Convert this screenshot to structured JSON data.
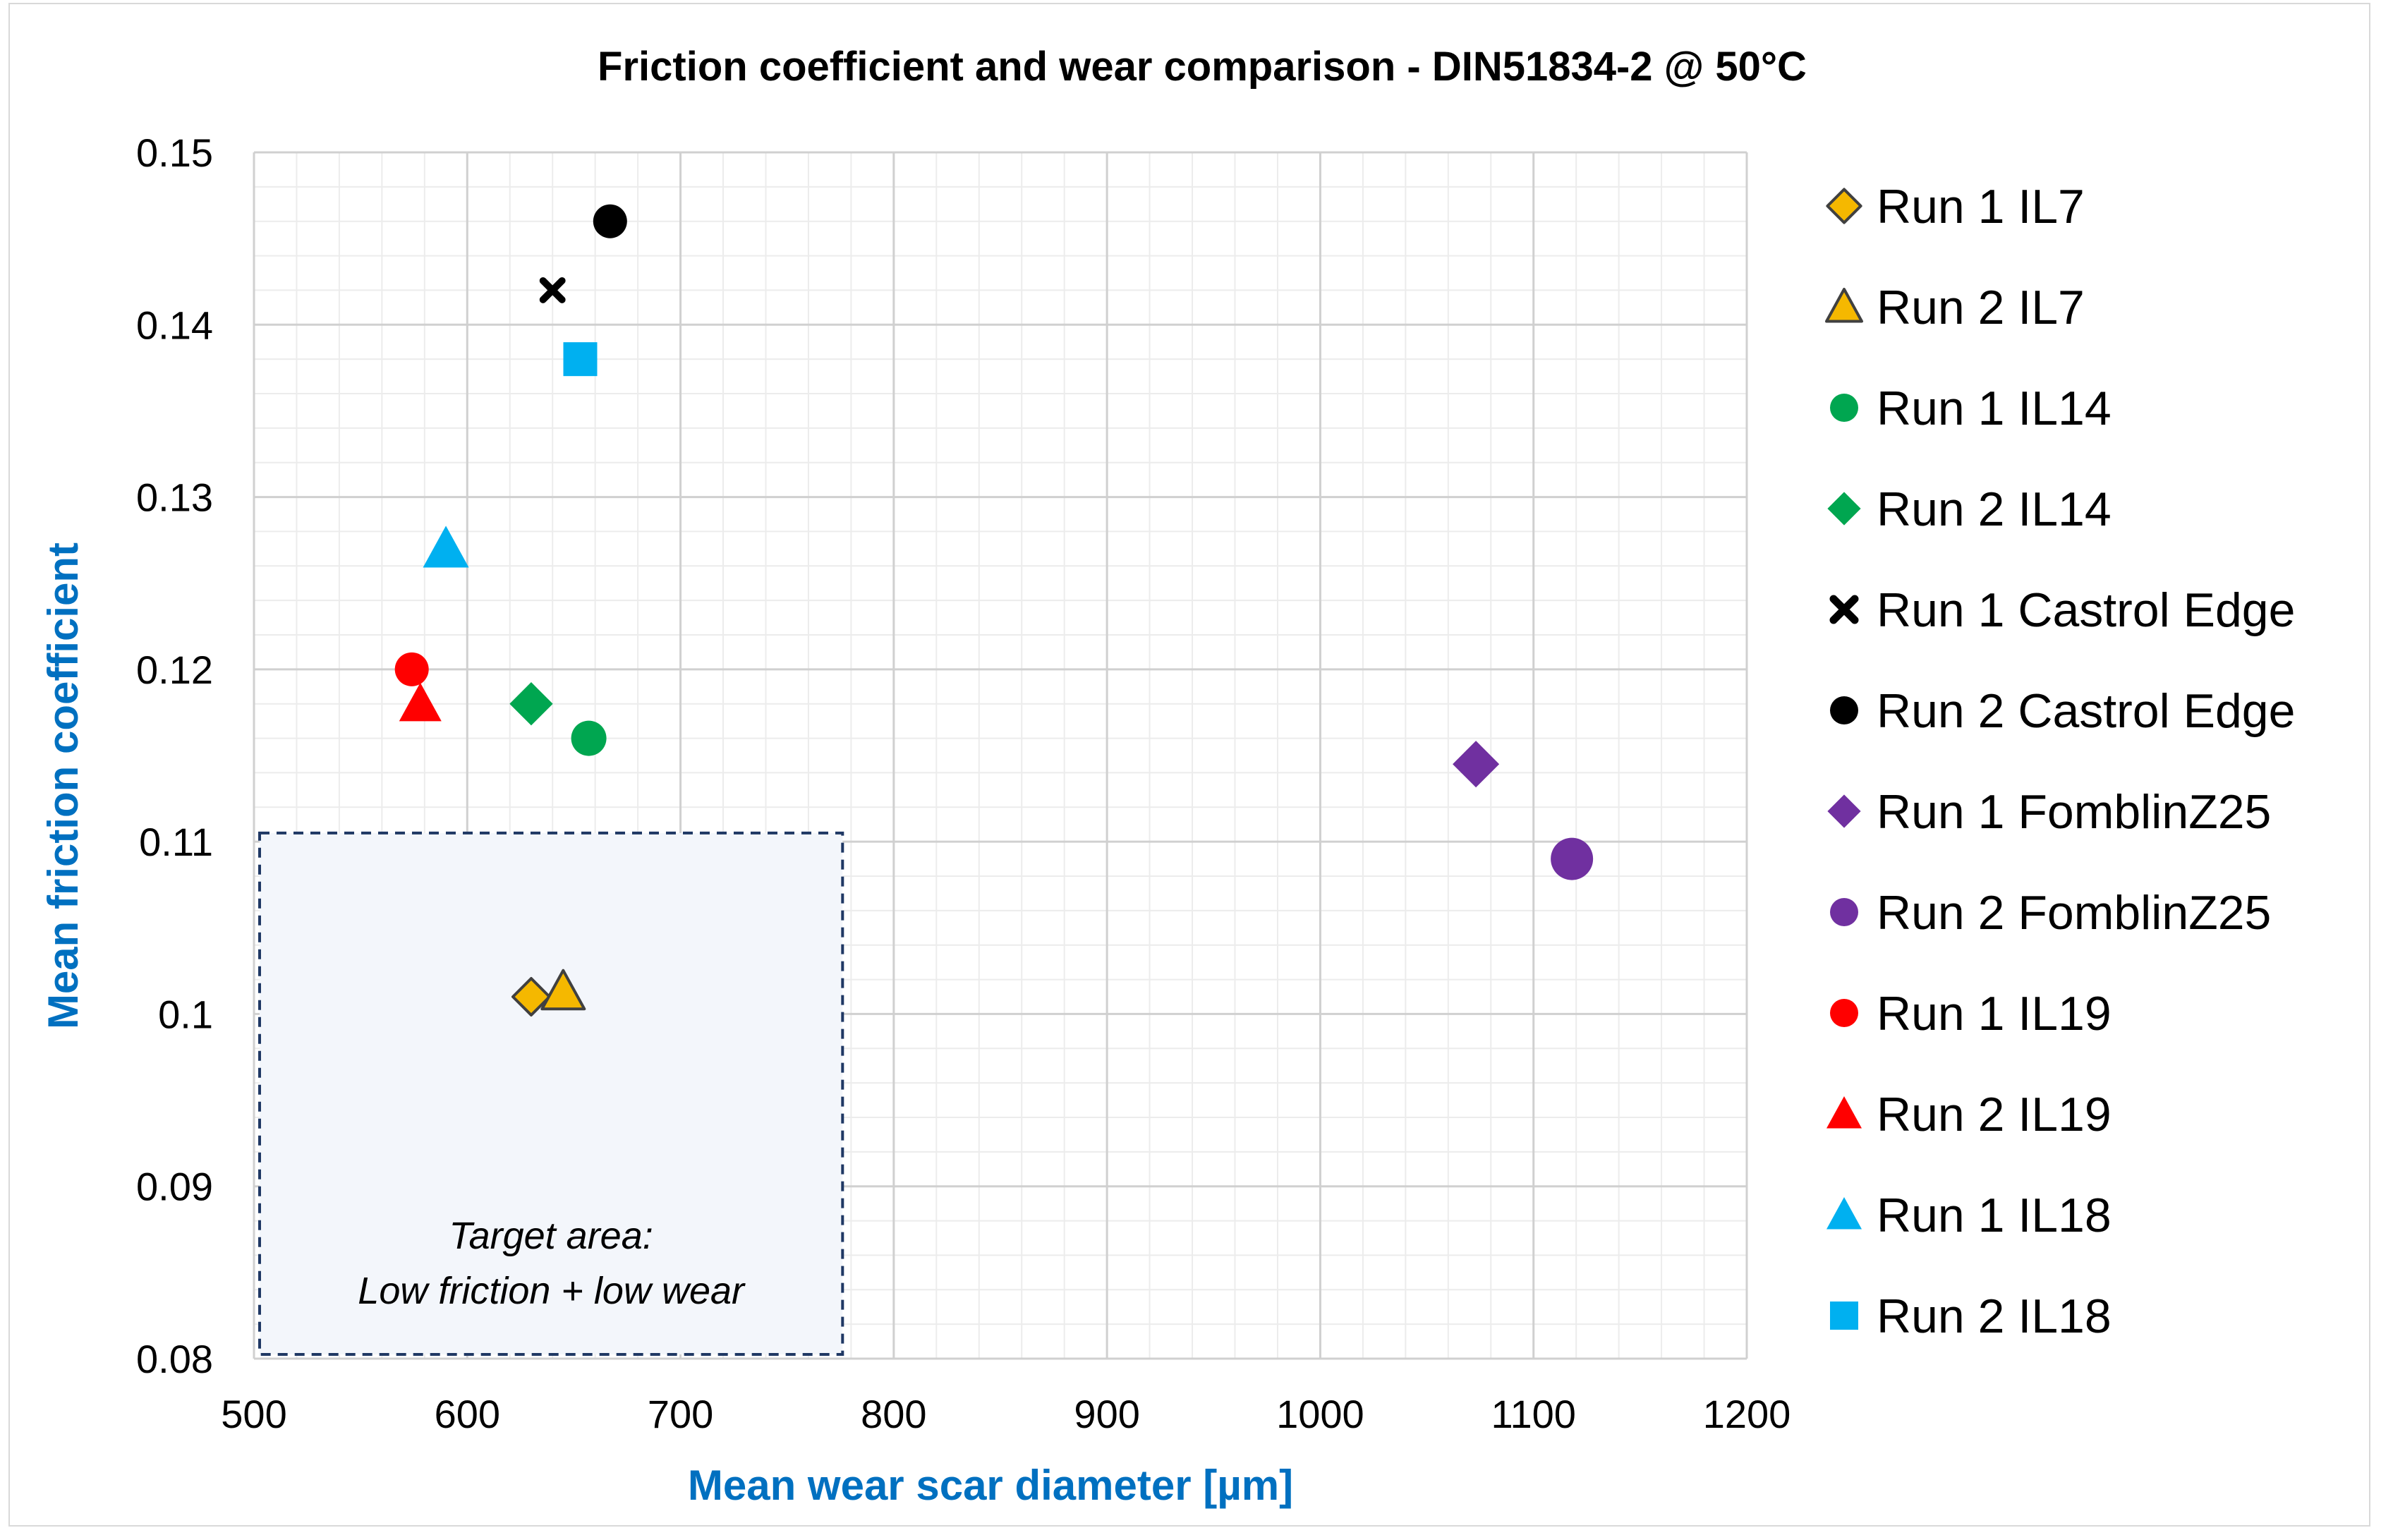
{
  "colors": {
    "gold": "#F5B800",
    "green": "#00A650",
    "black": "#000000",
    "purple": "#7030A0",
    "red": "#FF0000",
    "cyan": "#00B0F0",
    "axis_title": "#0070C0",
    "grid_major": "#d0d0d0",
    "grid_minor": "#ececec",
    "target_fill": "#f3f6fb",
    "target_stroke": "#1f3864"
  },
  "chart_data": {
    "type": "scatter",
    "title": "Friction coefficient and wear comparison - DIN51834-2 @ 50°C",
    "xlabel": "Mean wear scar diameter [µm]",
    "ylabel": "Mean friction coefficient",
    "xlim": [
      500,
      1200
    ],
    "ylim": [
      0.08,
      0.15
    ],
    "x_ticks": [
      500,
      600,
      700,
      800,
      900,
      1000,
      1100,
      1200
    ],
    "y_ticks": [
      0.08,
      0.09,
      0.1,
      0.11,
      0.12,
      0.13,
      0.14,
      0.15
    ],
    "x_tick_labels": [
      "500",
      "600",
      "700",
      "800",
      "900",
      "1000",
      "1100",
      "1200"
    ],
    "y_tick_labels": [
      "0.08",
      "0.09",
      "0.1",
      "0.11",
      "0.12",
      "0.13",
      "0.14",
      "0.15"
    ],
    "grid": true,
    "legend_position": "right",
    "series": [
      {
        "name": "Run 1 IL7",
        "marker": "diamond",
        "color": "#F5B800",
        "outline": "#404040",
        "x": 630,
        "y": 0.101
      },
      {
        "name": "Run 2 IL7",
        "marker": "triangle",
        "color": "#F5B800",
        "outline": "#404040",
        "x": 645,
        "y": 0.1013
      },
      {
        "name": "Run 1 IL14",
        "marker": "circle",
        "color": "#00A650",
        "x": 657,
        "y": 0.116
      },
      {
        "name": "Run 2 IL14",
        "marker": "diamond",
        "color": "#00A650",
        "x": 630,
        "y": 0.118
      },
      {
        "name": "Run 1 Castrol Edge",
        "marker": "x",
        "color": "#000000",
        "x": 640,
        "y": 0.142
      },
      {
        "name": "Run 2 Castrol Edge",
        "marker": "circle",
        "color": "#000000",
        "x": 667,
        "y": 0.146
      },
      {
        "name": "Run 1 FomblinZ25",
        "marker": "diamond",
        "color": "#7030A0",
        "x": 1073,
        "y": 0.1145
      },
      {
        "name": "Run 2 FomblinZ25",
        "marker": "circle",
        "color": "#7030A0",
        "x": 1118,
        "y": 0.109
      },
      {
        "name": "Run 1 IL19",
        "marker": "circle",
        "color": "#FF0000",
        "x": 574,
        "y": 0.12
      },
      {
        "name": "Run 2 IL19",
        "marker": "triangle",
        "color": "#FF0000",
        "x": 578,
        "y": 0.118
      },
      {
        "name": "Run 1 IL18",
        "marker": "triangle",
        "color": "#00B0F0",
        "x": 590,
        "y": 0.127
      },
      {
        "name": "Run 2 IL18",
        "marker": "square",
        "color": "#00B0F0",
        "x": 653,
        "y": 0.138
      }
    ],
    "annotations": [
      {
        "type": "target-area",
        "lines": [
          "Target area:",
          "Low friction + low wear"
        ],
        "x_range": [
          500,
          776
        ],
        "y_range": [
          0.08,
          0.1105
        ]
      }
    ]
  }
}
